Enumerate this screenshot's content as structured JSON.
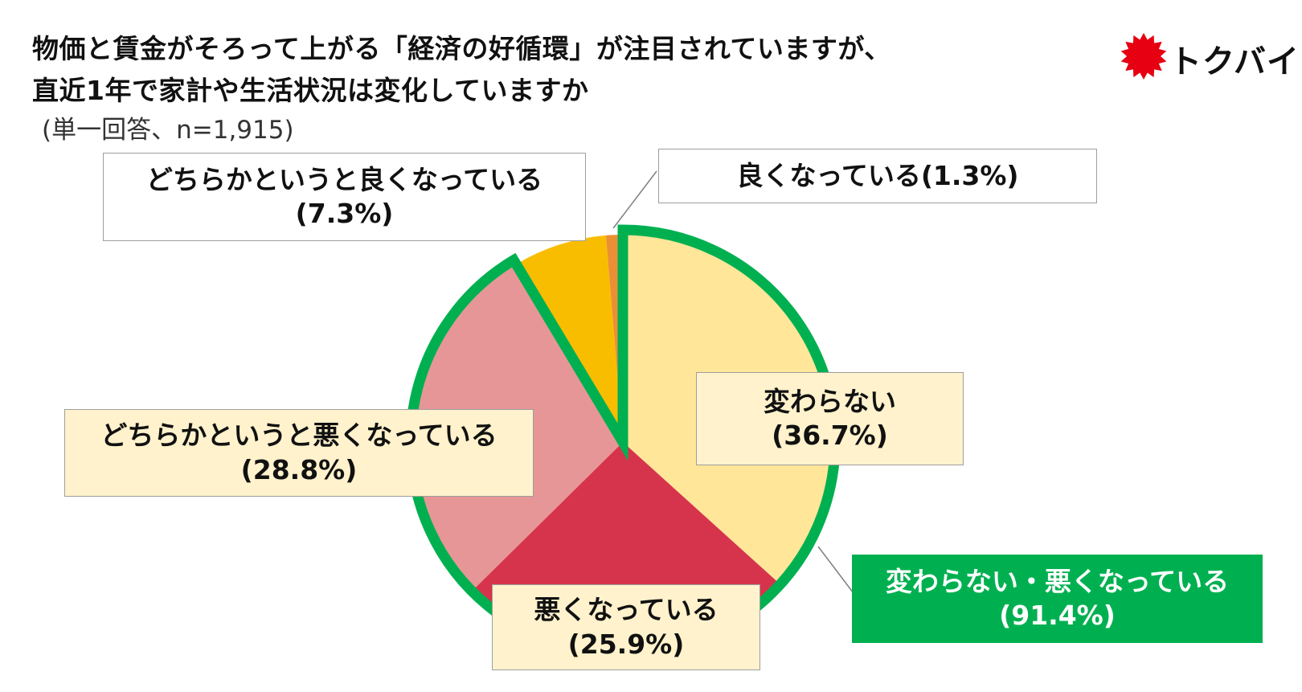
{
  "header": {
    "title_line1": "物価と賃金がそろって上がる「経済の好循環」が注目されていますが、",
    "title_line2": "直近1年で家計や生活状況は変化していますか",
    "subtitle": "(単一回答、n=1,915)"
  },
  "logo": {
    "text": "トクバイ",
    "icon": "red-starburst-icon",
    "color": "#e60012"
  },
  "chart_data": {
    "type": "pie",
    "start": "12 o'clock, clockwise",
    "slices": [
      {
        "label": "変わらない",
        "value": 36.7,
        "value_text": "(36.7%)",
        "color": "#ffe699"
      },
      {
        "label": "悪くなっている",
        "value": 25.9,
        "value_text": "(25.9%)",
        "color": "#d6344c"
      },
      {
        "label": "どちらかというと悪くなっている",
        "value": 28.8,
        "value_text": "(28.8%)",
        "color": "#e69696"
      },
      {
        "label": "どちらかというと良くなっている",
        "value": 7.3,
        "value_text": "(7.3%)",
        "color": "#f9bd00"
      },
      {
        "label": "良くなっている",
        "value": 1.3,
        "value_text": "(1.3%)",
        "color": "#eb8f35"
      }
    ],
    "highlight": {
      "label": "変わらない・悪くなっている",
      "value": 91.4,
      "value_text": "(91.4%)",
      "color": "#00b050",
      "covers": [
        "変わらない",
        "悪くなっている",
        "どちらかというと悪くなっている"
      ]
    }
  }
}
